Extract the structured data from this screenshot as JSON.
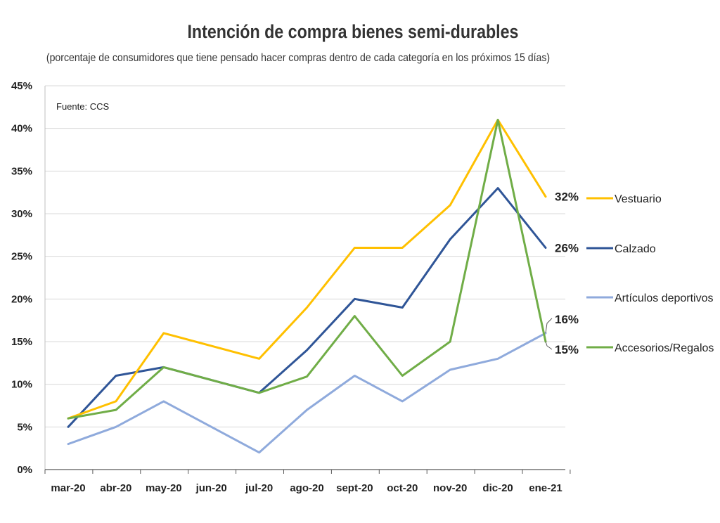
{
  "header": {
    "title": "Intención de compra bienes semi-durables",
    "subtitle": "(porcentaje de consumidores que tiene pensado hacer compras dentro de cada categoría en los próximos 15 días)"
  },
  "source_note": "Fuente: CCS",
  "chart_data": {
    "type": "line",
    "title": "Intención de compra bienes semi-durables",
    "subtitle": "(porcentaje de consumidores que tiene pensado hacer compras dentro de cada categoría en los próximos 15 días)",
    "xlabel": "",
    "ylabel": "",
    "categories": [
      "mar-20",
      "abr-20",
      "may-20",
      "jun-20",
      "jul-20",
      "ago-20",
      "sept-20",
      "oct-20",
      "nov-20",
      "dic-20",
      "ene-21"
    ],
    "ylim": [
      0,
      45
    ],
    "yticks": [
      0,
      5,
      10,
      15,
      20,
      25,
      30,
      35,
      40,
      45
    ],
    "ytick_labels": [
      "0%",
      "5%",
      "10%",
      "15%",
      "20%",
      "25%",
      "30%",
      "35%",
      "40%",
      "45%"
    ],
    "grid": "horizontal",
    "legend_position": "right",
    "series": [
      {
        "name": "Vestuario",
        "color": "#FFC000",
        "values": [
          6,
          8,
          16,
          null,
          13,
          19,
          26,
          26,
          31,
          41,
          32
        ],
        "end_label": "32%"
      },
      {
        "name": "Calzado",
        "color": "#2F5597",
        "values": [
          5,
          11,
          12,
          null,
          9,
          14,
          20,
          19,
          27,
          33,
          26
        ],
        "end_label": "26%"
      },
      {
        "name": "Artículos deportivos",
        "color": "#8FAADC",
        "values": [
          3,
          5,
          8,
          null,
          2,
          7,
          11,
          8,
          11.7,
          13,
          16
        ],
        "end_label": "16%"
      },
      {
        "name": "Accesorios/Regalos",
        "color": "#70AD47",
        "values": [
          6,
          7,
          12,
          null,
          9,
          10.9,
          18,
          11,
          15,
          41,
          15
        ],
        "end_label": "15%"
      }
    ]
  }
}
